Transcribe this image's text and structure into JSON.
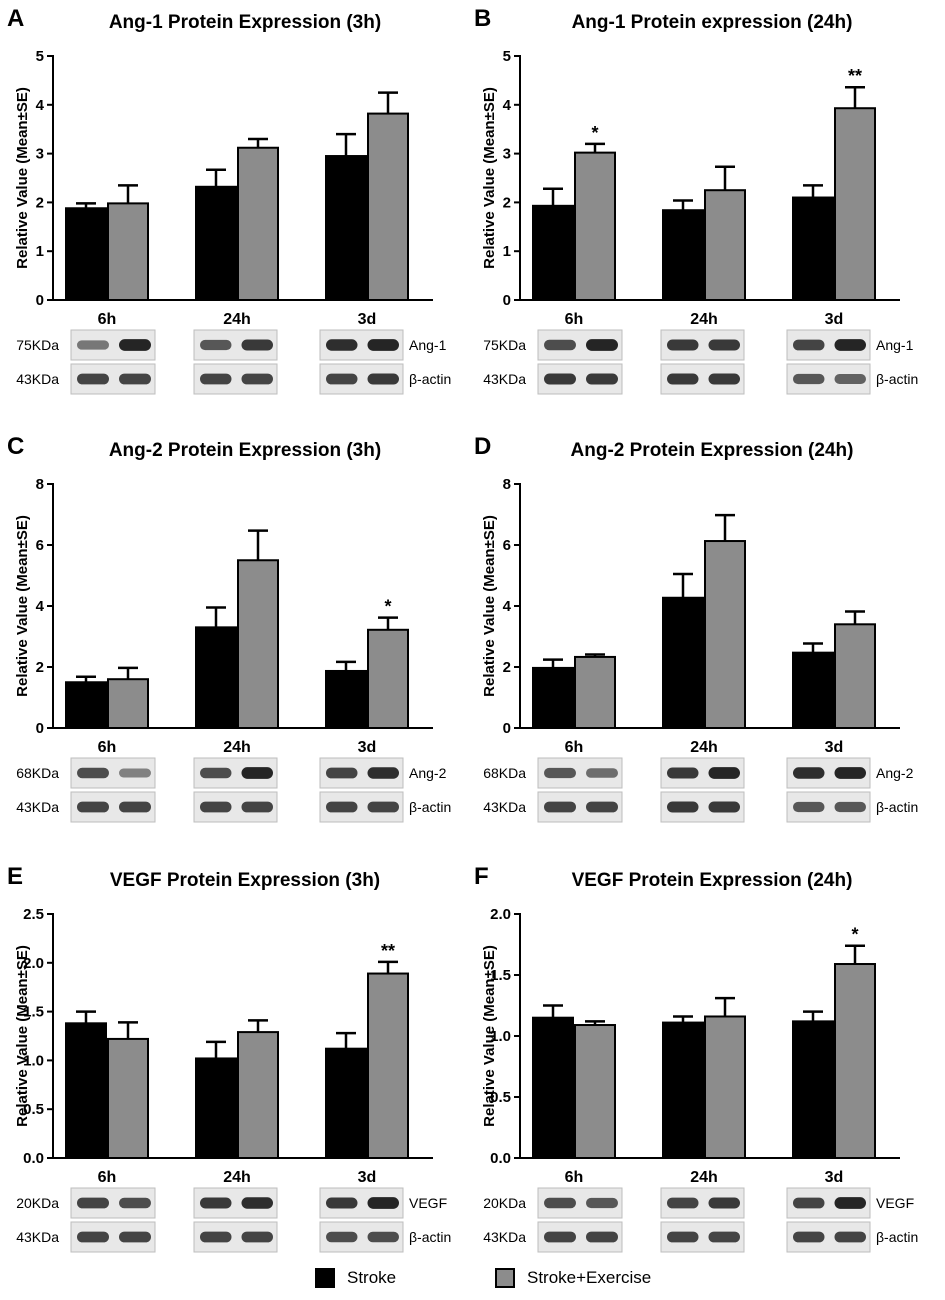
{
  "colors": {
    "stroke": "#000000",
    "exercise": "#8c8c8c",
    "blot_bg": "#e8e8e8",
    "band": "#1a1a1a"
  },
  "legend": {
    "stroke_label": "Stroke",
    "exercise_label": "Stroke+Exercise"
  },
  "chart_data": [
    {
      "panel": "A",
      "type": "bar",
      "title": "Ang-1 Protein Expression (3h)",
      "ylabel": "Relative Value (Mean±SE)",
      "ylim": [
        0,
        5
      ],
      "yticks": [
        "0",
        "1",
        "2",
        "3",
        "4",
        "5"
      ],
      "ytick_values": [
        0,
        1,
        2,
        3,
        4,
        5
      ],
      "categories": [
        "6h",
        "24h",
        "3d"
      ],
      "series": [
        {
          "name": "Stroke",
          "values": [
            1.88,
            2.32,
            2.95
          ],
          "errors": [
            0.1,
            0.35,
            0.45
          ]
        },
        {
          "name": "Stroke+Exercise",
          "values": [
            1.98,
            3.12,
            3.82
          ],
          "errors": [
            0.37,
            0.18,
            0.43
          ]
        }
      ],
      "annotations": [
        "",
        "",
        ""
      ],
      "blot": {
        "rows": [
          {
            "kda": "75KDa",
            "protein": "Ang-1",
            "intensity": [
              [
                0.55,
                0.95
              ],
              [
                0.7,
                0.85
              ],
              [
                0.9,
                0.95
              ]
            ]
          },
          {
            "kda": "43KDa",
            "protein": "β-actin",
            "intensity": [
              [
                0.8,
                0.8
              ],
              [
                0.8,
                0.8
              ],
              [
                0.8,
                0.85
              ]
            ]
          }
        ]
      }
    },
    {
      "panel": "B",
      "type": "bar",
      "title": "Ang-1 Protein expression (24h)",
      "ylabel": "Relative Value (Mean±SE)",
      "ylim": [
        0,
        5
      ],
      "yticks": [
        "0",
        "1",
        "2",
        "3",
        "4",
        "5"
      ],
      "ytick_values": [
        0,
        1,
        2,
        3,
        4,
        5
      ],
      "categories": [
        "6h",
        "24h",
        "3d"
      ],
      "series": [
        {
          "name": "Stroke",
          "values": [
            1.93,
            1.84,
            2.1
          ],
          "errors": [
            0.35,
            0.2,
            0.25
          ]
        },
        {
          "name": "Stroke+Exercise",
          "values": [
            3.02,
            2.25,
            3.93
          ],
          "errors": [
            0.18,
            0.48,
            0.43
          ]
        }
      ],
      "annotations": [
        "*",
        "",
        "**"
      ],
      "blot": {
        "rows": [
          {
            "kda": "75KDa",
            "protein": "Ang-1",
            "intensity": [
              [
                0.75,
                0.95
              ],
              [
                0.85,
                0.85
              ],
              [
                0.8,
                0.95
              ]
            ]
          },
          {
            "kda": "43KDa",
            "protein": "β-actin",
            "intensity": [
              [
                0.85,
                0.85
              ],
              [
                0.85,
                0.85
              ],
              [
                0.7,
                0.65
              ]
            ]
          }
        ]
      }
    },
    {
      "panel": "C",
      "type": "bar",
      "title": "Ang-2 Protein Expression (3h)",
      "ylabel": "Relative Value (Mean±SE)",
      "ylim": [
        0,
        8
      ],
      "yticks": [
        "0",
        "2",
        "4",
        "6",
        "8"
      ],
      "ytick_values": [
        0,
        2,
        4,
        6,
        8
      ],
      "categories": [
        "6h",
        "24h",
        "3d"
      ],
      "series": [
        {
          "name": "Stroke",
          "values": [
            1.5,
            3.3,
            1.87
          ],
          "errors": [
            0.18,
            0.65,
            0.3
          ]
        },
        {
          "name": "Stroke+Exercise",
          "values": [
            1.6,
            5.5,
            3.22
          ],
          "errors": [
            0.37,
            0.97,
            0.4
          ]
        }
      ],
      "annotations": [
        "",
        "",
        "*"
      ],
      "blot": {
        "rows": [
          {
            "kda": "68KDa",
            "protein": "Ang-2",
            "intensity": [
              [
                0.75,
                0.5
              ],
              [
                0.75,
                0.95
              ],
              [
                0.8,
                0.9
              ]
            ]
          },
          {
            "kda": "43KDa",
            "protein": "β-actin",
            "intensity": [
              [
                0.8,
                0.8
              ],
              [
                0.8,
                0.8
              ],
              [
                0.8,
                0.8
              ]
            ]
          }
        ]
      }
    },
    {
      "panel": "D",
      "type": "bar",
      "title": "Ang-2 Protein Expression (24h)",
      "ylabel": "Relative Value (Mean±SE)",
      "ylim": [
        0,
        8
      ],
      "yticks": [
        "0",
        "2",
        "4",
        "6",
        "8"
      ],
      "ytick_values": [
        0,
        2,
        4,
        6,
        8
      ],
      "categories": [
        "6h",
        "24h",
        "3d"
      ],
      "series": [
        {
          "name": "Stroke",
          "values": [
            1.97,
            4.27,
            2.47
          ],
          "errors": [
            0.27,
            0.78,
            0.3
          ]
        },
        {
          "name": "Stroke+Exercise",
          "values": [
            2.33,
            6.13,
            3.4
          ],
          "errors": [
            0.08,
            0.85,
            0.42
          ]
        }
      ],
      "annotations": [
        "",
        "",
        ""
      ],
      "blot": {
        "rows": [
          {
            "kda": "68KDa",
            "protein": "Ang-2",
            "intensity": [
              [
                0.7,
                0.6
              ],
              [
                0.85,
                0.95
              ],
              [
                0.9,
                0.95
              ]
            ]
          },
          {
            "kda": "43KDa",
            "protein": "β-actin",
            "intensity": [
              [
                0.8,
                0.8
              ],
              [
                0.85,
                0.85
              ],
              [
                0.7,
                0.7
              ]
            ]
          }
        ]
      }
    },
    {
      "panel": "E",
      "type": "bar",
      "title": "VEGF Protein Expression (3h)",
      "ylabel": "Relative Value (Mean±SE)",
      "ylim": [
        0,
        2.5
      ],
      "yticks": [
        "0.0",
        "0.5",
        "1.0",
        "1.5",
        "2.0",
        "2.5"
      ],
      "ytick_values": [
        0,
        0.5,
        1,
        1.5,
        2,
        2.5
      ],
      "categories": [
        "6h",
        "24h",
        "3d"
      ],
      "series": [
        {
          "name": "Stroke",
          "values": [
            1.38,
            1.02,
            1.12
          ],
          "errors": [
            0.12,
            0.17,
            0.16
          ]
        },
        {
          "name": "Stroke+Exercise",
          "values": [
            1.22,
            1.29,
            1.89
          ],
          "errors": [
            0.17,
            0.12,
            0.12
          ]
        }
      ],
      "annotations": [
        "",
        "",
        "**"
      ],
      "blot": {
        "rows": [
          {
            "kda": "20KDa",
            "protein": "VEGF",
            "intensity": [
              [
                0.8,
                0.75
              ],
              [
                0.85,
                0.9
              ],
              [
                0.85,
                0.95
              ]
            ]
          },
          {
            "kda": "43KDa",
            "protein": "β-actin",
            "intensity": [
              [
                0.8,
                0.8
              ],
              [
                0.8,
                0.8
              ],
              [
                0.75,
                0.75
              ]
            ]
          }
        ]
      }
    },
    {
      "panel": "F",
      "type": "bar",
      "title": "VEGF Protein Expression (24h)",
      "ylabel": "Relative Value (Mean±SE)",
      "ylim": [
        0,
        2.0
      ],
      "yticks": [
        "0.0",
        "0.5",
        "1.0",
        "1.5",
        "2.0"
      ],
      "ytick_values": [
        0,
        0.5,
        1,
        1.5,
        2
      ],
      "categories": [
        "6h",
        "24h",
        "3d"
      ],
      "series": [
        {
          "name": "Stroke",
          "values": [
            1.15,
            1.11,
            1.12
          ],
          "errors": [
            0.1,
            0.05,
            0.08
          ]
        },
        {
          "name": "Stroke+Exercise",
          "values": [
            1.09,
            1.16,
            1.59
          ],
          "errors": [
            0.03,
            0.15,
            0.15
          ]
        }
      ],
      "annotations": [
        "",
        "",
        "*"
      ],
      "blot": {
        "rows": [
          {
            "kda": "20KDa",
            "protein": "VEGF",
            "intensity": [
              [
                0.75,
                0.7
              ],
              [
                0.8,
                0.85
              ],
              [
                0.8,
                0.95
              ]
            ]
          },
          {
            "kda": "43KDa",
            "protein": "β-actin",
            "intensity": [
              [
                0.8,
                0.8
              ],
              [
                0.8,
                0.8
              ],
              [
                0.8,
                0.8
              ]
            ]
          }
        ]
      }
    }
  ]
}
